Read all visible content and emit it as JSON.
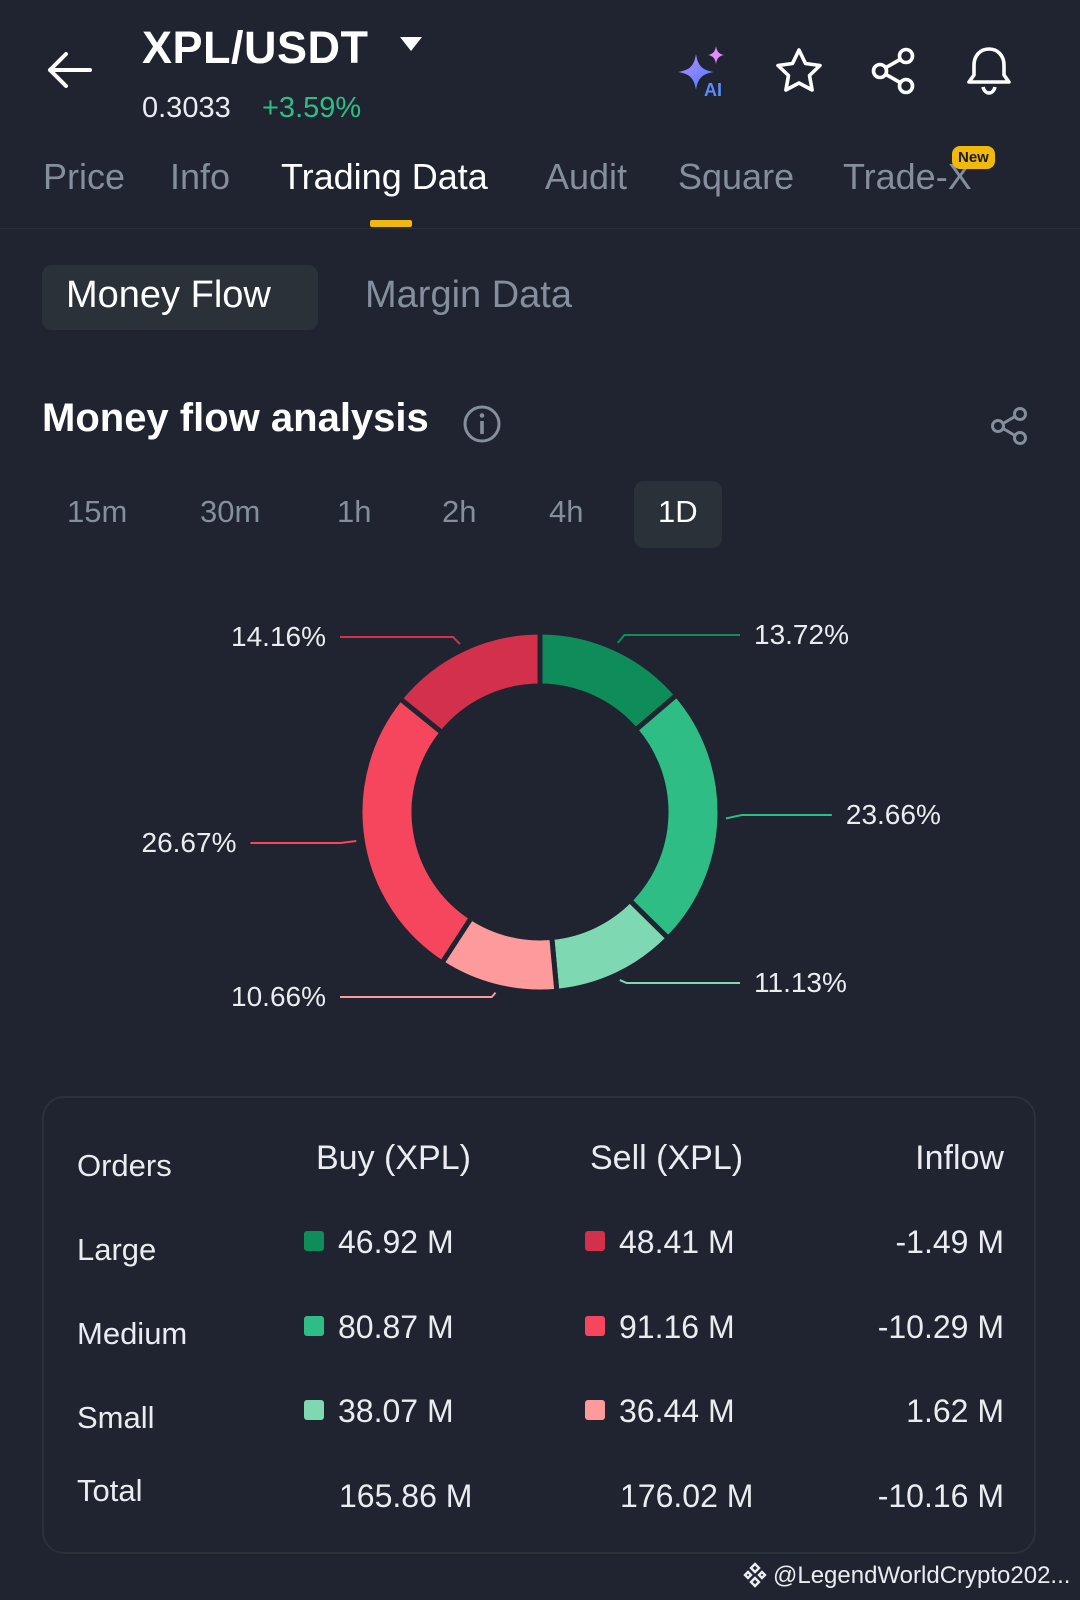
{
  "header": {
    "pair": "XPL/USDT",
    "price": "0.3033",
    "change": "+3.59%",
    "icons": [
      "back-arrow-icon",
      "chevron-down-icon",
      "ai-sparkle-icon",
      "star-icon",
      "share-icon",
      "bell-icon"
    ]
  },
  "tabs": [
    {
      "label": "Price"
    },
    {
      "label": "Info"
    },
    {
      "label": "Trading Data",
      "active": true
    },
    {
      "label": "Audit"
    },
    {
      "label": "Square"
    },
    {
      "label": "Trade-X",
      "badge": "New"
    }
  ],
  "subtabs": [
    {
      "label": "Money Flow",
      "active": true
    },
    {
      "label": "Margin Data"
    }
  ],
  "section": {
    "title": "Money flow analysis"
  },
  "timeframes": [
    "15m",
    "30m",
    "1h",
    "2h",
    "4h",
    "1D"
  ],
  "selected_timeframe": "1D",
  "chart_data": {
    "type": "pie",
    "title": "Money flow analysis",
    "slices": [
      {
        "label": "Large Buy",
        "value": 13.72,
        "text": "13.72%",
        "color": "#0e8c5a"
      },
      {
        "label": "Medium Buy",
        "value": 23.66,
        "text": "23.66%",
        "color": "#2ebd85"
      },
      {
        "label": "Small Buy",
        "value": 11.13,
        "text": "11.13%",
        "color": "#7ed9b2"
      },
      {
        "label": "Small Sell",
        "value": 10.66,
        "text": "10.66%",
        "color": "#fc9a9c"
      },
      {
        "label": "Medium Sell",
        "value": 26.67,
        "text": "26.67%",
        "color": "#f6465d"
      },
      {
        "label": "Large Sell",
        "value": 14.16,
        "text": "14.16%",
        "color": "#d3304b"
      }
    ]
  },
  "table": {
    "headers": {
      "orders": "Orders",
      "buy": "Buy (XPL)",
      "sell": "Sell (XPL)",
      "inflow": "Inflow"
    },
    "rows": [
      {
        "label": "Large",
        "buy": "46.92 M",
        "sell": "48.41 M",
        "inflow": "-1.49 M",
        "buy_color": "#0e8c5a",
        "sell_color": "#d3304b"
      },
      {
        "label": "Medium",
        "buy": "80.87 M",
        "sell": "91.16 M",
        "inflow": "-10.29 M",
        "buy_color": "#2ebd85",
        "sell_color": "#f6465d"
      },
      {
        "label": "Small",
        "buy": "38.07 M",
        "sell": "36.44 M",
        "inflow": "1.62 M",
        "buy_color": "#7ed9b2",
        "sell_color": "#fc9a9c"
      },
      {
        "label": "Total",
        "buy": "165.86 M",
        "sell": "176.02 M",
        "inflow": "-10.16 M"
      }
    ]
  },
  "watermark": "@LegendWorldCrypto202..."
}
